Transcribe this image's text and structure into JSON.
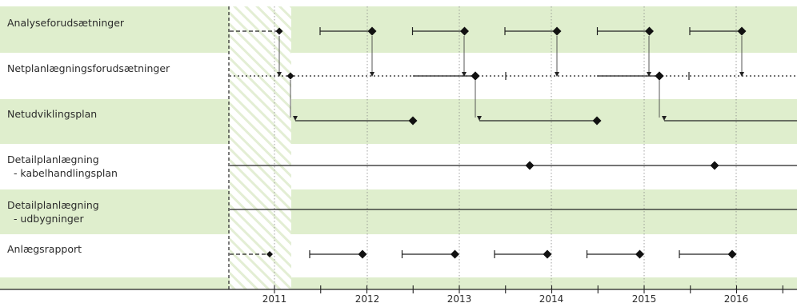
{
  "colors": {
    "band": "#dfeecd",
    "hatch": "#e8f1dc",
    "line": "#222222",
    "grid": "#888888"
  },
  "rows": [
    {
      "label": "Analyseforudsætninger",
      "shaded": true
    },
    {
      "label": "Netplanlægningsforudsætninger",
      "shaded": false
    },
    {
      "label": "Netudviklingsplan",
      "shaded": true
    },
    {
      "label": "Detailplanlægning\n  - kabelhandlingsplan",
      "shaded": false
    },
    {
      "label": "Detailplanlægning\n  - udbygninger",
      "shaded": true
    },
    {
      "label": "Anlægsrapport",
      "shaded": false
    }
  ],
  "axis": {
    "years": [
      "2011",
      "2012",
      "2013",
      "2014",
      "2015",
      "2016"
    ]
  }
}
